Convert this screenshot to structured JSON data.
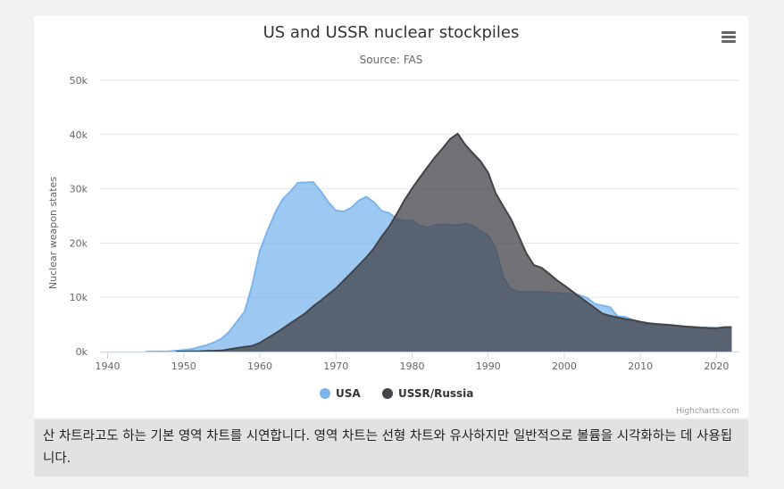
{
  "chart_data": {
    "type": "area",
    "title": "US and USSR nuclear stockpiles",
    "subtitle": "Source: FAS",
    "xlabel": "",
    "ylabel": "Nuclear weapon states",
    "xlim": [
      1939,
      2023
    ],
    "ylim": [
      0,
      50000
    ],
    "x_ticks": [
      1940,
      1950,
      1960,
      1970,
      1980,
      1990,
      2000,
      2010,
      2020
    ],
    "x_tick_labels": [
      "1940",
      "1950",
      "1960",
      "1970",
      "1980",
      "1990",
      "2000",
      "2010",
      "2020"
    ],
    "y_ticks": [
      0,
      10000,
      20000,
      30000,
      40000,
      50000
    ],
    "y_tick_labels": [
      "0k",
      "10k",
      "20k",
      "30k",
      "40k",
      "50k"
    ],
    "grid": true,
    "legend_position": "bottom-center",
    "credits": "Highcharts.com",
    "series": [
      {
        "name": "USA",
        "color": "#7cb5ec",
        "x": [
          1945,
          1946,
          1947,
          1948,
          1949,
          1950,
          1951,
          1952,
          1953,
          1954,
          1955,
          1956,
          1957,
          1958,
          1959,
          1960,
          1961,
          1962,
          1963,
          1964,
          1965,
          1966,
          1967,
          1968,
          1969,
          1970,
          1971,
          1972,
          1973,
          1974,
          1975,
          1976,
          1977,
          1978,
          1979,
          1980,
          1981,
          1982,
          1983,
          1984,
          1985,
          1986,
          1987,
          1988,
          1989,
          1990,
          1991,
          1992,
          1993,
          1994,
          1995,
          1996,
          1997,
          1998,
          1999,
          2000,
          2001,
          2002,
          2003,
          2004,
          2005,
          2006,
          2007,
          2008,
          2009,
          2010,
          2011,
          2012,
          2013,
          2014,
          2015,
          2016,
          2017,
          2018,
          2019,
          2020,
          2021,
          2022
        ],
        "values": [
          2,
          9,
          13,
          50,
          170,
          298,
          438,
          841,
          1169,
          1703,
          2422,
          3692,
          5543,
          7345,
          12298,
          18638,
          22229,
          25540,
          28133,
          29463,
          31139,
          31175,
          31255,
          29561,
          27552,
          26008,
          25830,
          26516,
          27835,
          28537,
          27519,
          25914,
          25542,
          24418,
          24138,
          24104,
          23208,
          22886,
          23305,
          23459,
          23368,
          23317,
          23575,
          23205,
          22217,
          21392,
          19008,
          13708,
          11511,
          11003,
          10979,
          11003,
          11000,
          10900,
          10800,
          10700,
          10600,
          10400,
          9900,
          8800,
          8500,
          8200,
          6500,
          6400,
          5800,
          5300,
          5000,
          4900,
          4800,
          4750,
          4700,
          4600,
          4550,
          4450,
          4400,
          4380,
          4350,
          4320
        ]
      },
      {
        "name": "USSR/Russia",
        "color": "#434348",
        "x": [
          1949,
          1950,
          1951,
          1952,
          1953,
          1954,
          1955,
          1956,
          1957,
          1958,
          1959,
          1960,
          1961,
          1962,
          1963,
          1964,
          1965,
          1966,
          1967,
          1968,
          1969,
          1970,
          1971,
          1972,
          1973,
          1974,
          1975,
          1976,
          1977,
          1978,
          1979,
          1980,
          1981,
          1982,
          1983,
          1984,
          1985,
          1986,
          1987,
          1988,
          1989,
          1990,
          1991,
          1992,
          1993,
          1994,
          1995,
          1996,
          1997,
          1998,
          1999,
          2000,
          2001,
          2002,
          2003,
          2004,
          2005,
          2006,
          2007,
          2008,
          2009,
          2010,
          2011,
          2012,
          2013,
          2014,
          2015,
          2016,
          2017,
          2018,
          2019,
          2020,
          2021,
          2022
        ],
        "values": [
          1,
          5,
          25,
          50,
          120,
          150,
          200,
          426,
          660,
          869,
          1060,
          1605,
          2471,
          3322,
          4238,
          5221,
          6129,
          7089,
          8339,
          9399,
          10538,
          11643,
          13092,
          14478,
          15915,
          17385,
          19055,
          21205,
          23044,
          25393,
          27935,
          30062,
          32049,
          33952,
          35804,
          37431,
          39197,
          40159,
          38107,
          36538,
          35078,
          32980,
          29154,
          26734,
          24403,
          21339,
          18179,
          15942,
          15442,
          14368,
          13188,
          12188,
          11152,
          10114,
          9076,
          8038,
          7000,
          6600,
          6300,
          6000,
          5800,
          5500,
          5250,
          5100,
          5000,
          4900,
          4750,
          4600,
          4500,
          4400,
          4350,
          4300,
          4500,
          4500
        ]
      }
    ]
  },
  "caption_text": "산 차트라고도 하는 기본 영역 차트를 시연합니다. 영역 차트는 선형 차트와 유사하지만 일반적으로 볼륨을 시각화하는 데 사용됩니다."
}
